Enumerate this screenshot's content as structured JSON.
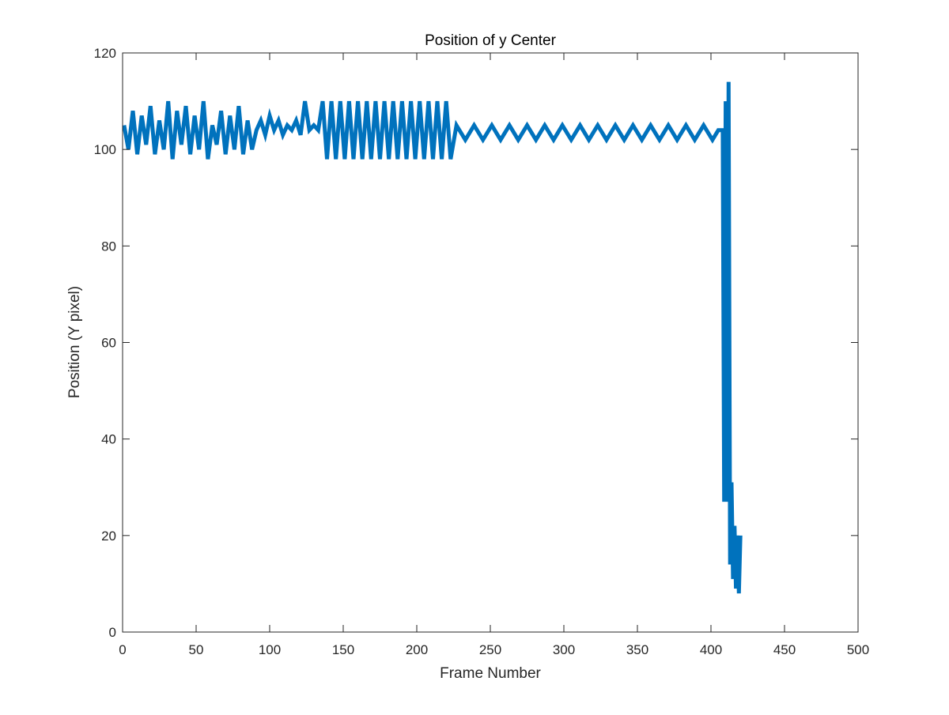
{
  "chart_data": {
    "type": "line",
    "title": "Position of y Center",
    "x_label": "Frame Number",
    "y_label": "Position (Y pixel)",
    "color": "#0072bd",
    "x": [
      1,
      4,
      7,
      10,
      13,
      16,
      19,
      22,
      25,
      28,
      31,
      34,
      37,
      40,
      43,
      46,
      49,
      52,
      55,
      58,
      61,
      64,
      67,
      70,
      73,
      76,
      79,
      82,
      85,
      88,
      91,
      94,
      97,
      100,
      103,
      106,
      109,
      112,
      115,
      118,
      121,
      124,
      127,
      130,
      133,
      136,
      139,
      142,
      145,
      148,
      151,
      154,
      157,
      160,
      163,
      166,
      169,
      172,
      175,
      178,
      181,
      184,
      187,
      190,
      193,
      196,
      199,
      202,
      205,
      208,
      211,
      214,
      217,
      220,
      223,
      227,
      233,
      239,
      245,
      251,
      257,
      263,
      269,
      275,
      281,
      287,
      293,
      299,
      305,
      311,
      317,
      323,
      329,
      335,
      341,
      347,
      353,
      359,
      365,
      371,
      377,
      383,
      389,
      395,
      401,
      405,
      408,
      409,
      410,
      411,
      412,
      413,
      414,
      415,
      416,
      417,
      418,
      419,
      420
    ],
    "values": [
      105,
      100,
      108,
      99,
      107,
      101,
      109,
      99,
      106,
      100,
      110,
      98,
      108,
      101,
      109,
      99,
      107,
      100,
      110,
      98,
      105,
      101,
      108,
      99,
      107,
      100,
      109,
      99,
      106,
      100,
      104,
      106,
      103,
      107,
      104,
      106,
      103,
      105,
      104,
      106,
      103,
      110,
      104,
      105,
      104,
      110,
      98,
      110,
      98,
      110,
      98,
      110,
      98,
      110,
      98,
      110,
      98,
      110,
      98,
      110,
      98,
      110,
      98,
      110,
      98,
      110,
      98,
      110,
      98,
      110,
      98,
      110,
      98,
      110,
      98,
      105,
      102,
      105,
      102,
      105,
      102,
      105,
      102,
      105,
      102,
      105,
      102,
      105,
      102,
      105,
      102,
      105,
      102,
      105,
      102,
      105,
      102,
      105,
      102,
      105,
      102,
      105,
      102,
      105,
      102,
      104,
      104,
      27,
      110,
      27,
      114,
      14,
      31,
      11,
      22,
      9,
      20,
      8,
      20
    ],
    "xlim": [
      0,
      500
    ],
    "xticks": [
      0,
      50,
      100,
      150,
      200,
      250,
      300,
      350,
      400,
      450,
      500
    ],
    "ylim": [
      0,
      120
    ],
    "yticks": [
      0,
      20,
      40,
      60,
      80,
      100,
      120
    ]
  }
}
